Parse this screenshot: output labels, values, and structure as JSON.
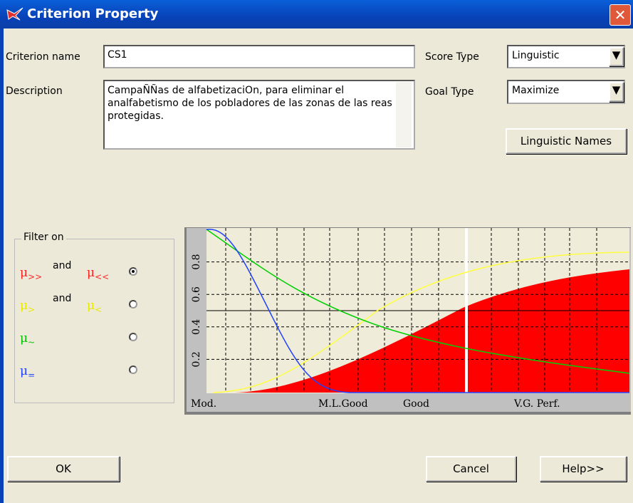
{
  "window": {
    "title": "Criterion Property"
  },
  "form": {
    "criterion_name_label": "Criterion name",
    "criterion_name_value": "CS1",
    "description_label": "Description",
    "description_value": "CampaÑÑas de alfabetizaciOn, para eliminar el analfabetismo de los pobladores de las zonas de las reas protegidas.",
    "score_type_label": "Score Type",
    "score_type_value": "Linguistic",
    "goal_type_label": "Goal Type",
    "goal_type_value": "Maximize",
    "linguistic_names_button": "Linguistic Names"
  },
  "filter": {
    "title": "Filter on",
    "options": [
      {
        "left_symbol": "μ",
        "left_sub": ">>",
        "joiner": "and",
        "right_symbol": "μ",
        "right_sub": "<<",
        "selected": true
      },
      {
        "left_symbol": "μ",
        "left_sub": ">",
        "joiner": "and",
        "right_symbol": "μ",
        "right_sub": "<",
        "selected": false
      },
      {
        "left_symbol": "μ",
        "left_sub": "~",
        "selected": false
      },
      {
        "left_symbol": "μ",
        "left_sub": "=",
        "selected": false
      }
    ]
  },
  "chart": {
    "ylim": [
      0,
      1
    ],
    "yticks": [
      0.2,
      0.4,
      0.6,
      0.8
    ],
    "x_labels": [
      "Mod.",
      "M.L.Good",
      "Good",
      "V.G. Perf."
    ]
  },
  "buttons": {
    "ok": "OK",
    "cancel": "Cancel",
    "help": "Help>>"
  }
}
